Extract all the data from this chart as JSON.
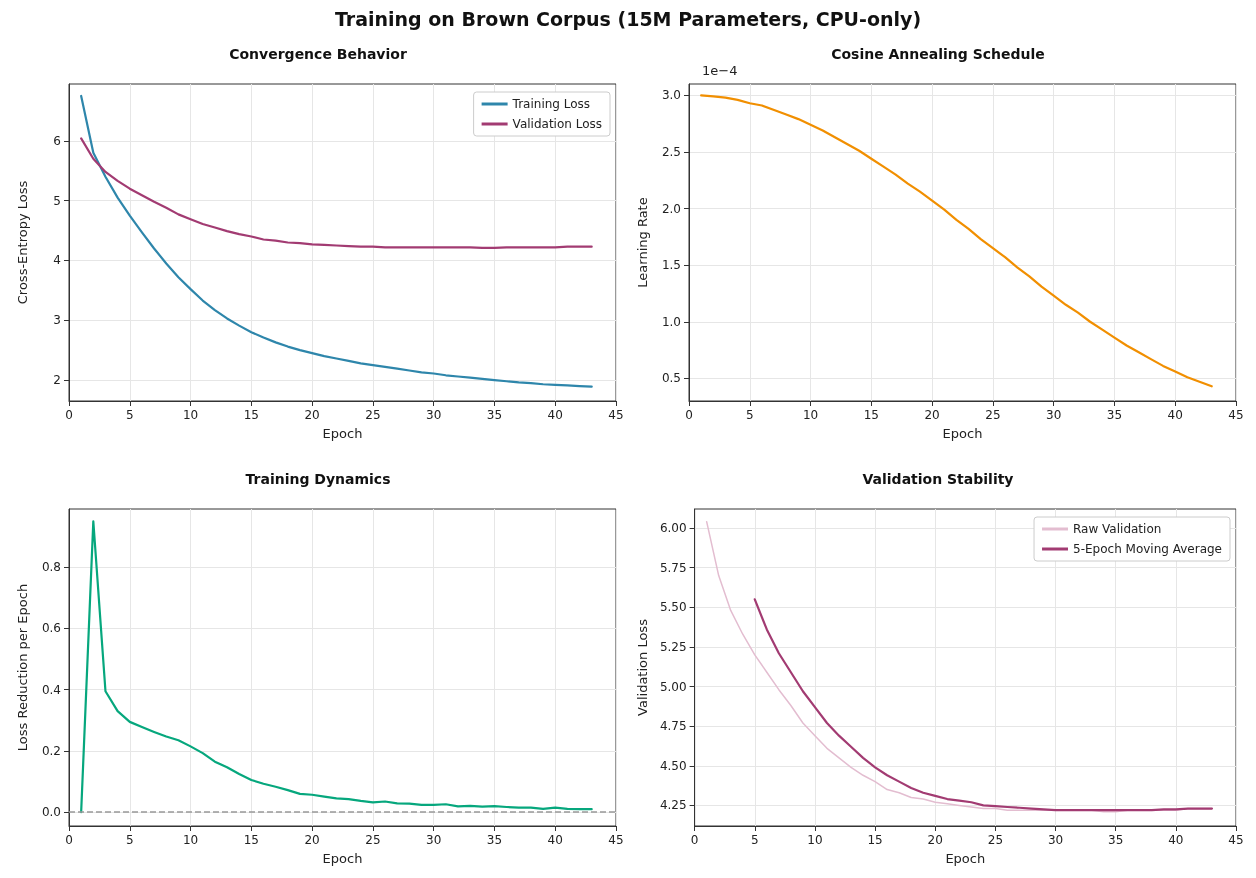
{
  "chart_data": [
    {
      "type": "line",
      "title": "Convergence Behavior",
      "annotations": [
        "Training on Brown Corpus (15M Parameters, CPU-only)"
      ],
      "xlabel": "Epoch",
      "ylabel": "Cross-Entropy Loss",
      "x": [
        1,
        2,
        3,
        4,
        5,
        6,
        7,
        8,
        9,
        10,
        11,
        12,
        13,
        14,
        15,
        16,
        17,
        18,
        19,
        20,
        21,
        22,
        23,
        24,
        25,
        26,
        27,
        28,
        29,
        30,
        31,
        32,
        33,
        34,
        35,
        36,
        37,
        38,
        39,
        40,
        41,
        42,
        43
      ],
      "xlim": [
        0,
        45
      ],
      "xticks": [
        0,
        5,
        10,
        15,
        20,
        25,
        30,
        35,
        40,
        45
      ],
      "ylim": [
        1.65,
        6.95
      ],
      "yticks": [
        2,
        3,
        4,
        5,
        6
      ],
      "grid": true,
      "legend": "top right",
      "marker": "none",
      "line_style": "solid",
      "series": [
        {
          "name": "Training Loss",
          "color": "#2e86ab",
          "values": [
            6.75,
            5.8,
            5.4,
            5.05,
            4.75,
            4.47,
            4.2,
            3.95,
            3.72,
            3.52,
            3.33,
            3.17,
            3.03,
            2.91,
            2.8,
            2.71,
            2.63,
            2.56,
            2.5,
            2.45,
            2.4,
            2.36,
            2.32,
            2.28,
            2.25,
            2.22,
            2.19,
            2.16,
            2.13,
            2.11,
            2.08,
            2.06,
            2.04,
            2.02,
            2.0,
            1.98,
            1.96,
            1.95,
            1.93,
            1.92,
            1.91,
            1.9,
            1.89
          ]
        },
        {
          "name": "Validation Loss",
          "color": "#a23b72",
          "values": [
            6.04,
            5.7,
            5.48,
            5.33,
            5.2,
            5.09,
            4.98,
            4.88,
            4.77,
            4.69,
            4.61,
            4.55,
            4.49,
            4.44,
            4.4,
            4.35,
            4.33,
            4.3,
            4.29,
            4.27,
            4.26,
            4.25,
            4.24,
            4.23,
            4.23,
            4.22,
            4.22,
            4.22,
            4.22,
            4.22,
            4.22,
            4.22,
            4.22,
            4.21,
            4.21,
            4.22,
            4.22,
            4.22,
            4.22,
            4.22,
            4.23,
            4.23,
            4.23
          ]
        }
      ]
    },
    {
      "type": "line",
      "title": "Cosine Annealing Schedule",
      "xlabel": "Epoch",
      "ylabel": "Learning Rate",
      "annotations": [
        "1e−4"
      ],
      "x": [
        1,
        2,
        3,
        4,
        5,
        6,
        7,
        8,
        9,
        10,
        11,
        12,
        13,
        14,
        15,
        16,
        17,
        18,
        19,
        20,
        21,
        22,
        23,
        24,
        25,
        26,
        27,
        28,
        29,
        30,
        31,
        32,
        33,
        34,
        35,
        36,
        37,
        38,
        39,
        40,
        41,
        42,
        43
      ],
      "xlim": [
        0,
        45
      ],
      "xticks": [
        0,
        5,
        10,
        15,
        20,
        25,
        30,
        35,
        40,
        45
      ],
      "ylim": [
        0.3,
        3.1
      ],
      "yticks": [
        {
          "value": 0.5,
          "label": "0.5"
        },
        {
          "value": 1.0,
          "label": "1.0"
        },
        {
          "value": 1.5,
          "label": "1.5"
        },
        {
          "value": 2.0,
          "label": "2.0"
        },
        {
          "value": 2.5,
          "label": "2.5"
        },
        {
          "value": 3.0,
          "label": "3.0"
        }
      ],
      "grid": true,
      "marker": "none",
      "line_style": "solid",
      "series": [
        {
          "color": "#f18f01",
          "values": [
            3.0,
            2.99,
            2.98,
            2.96,
            2.93,
            2.91,
            2.87,
            2.83,
            2.79,
            2.74,
            2.69,
            2.63,
            2.57,
            2.51,
            2.44,
            2.37,
            2.3,
            2.22,
            2.15,
            2.07,
            1.99,
            1.9,
            1.82,
            1.73,
            1.65,
            1.57,
            1.48,
            1.4,
            1.31,
            1.23,
            1.15,
            1.08,
            1.0,
            0.93,
            0.86,
            0.79,
            0.73,
            0.67,
            0.61,
            0.56,
            0.51,
            0.47,
            0.43
          ]
        }
      ]
    },
    {
      "type": "line",
      "title": "Training Dynamics",
      "xlabel": "Epoch",
      "ylabel": "Loss Reduction per Epoch",
      "x": [
        1,
        2,
        3,
        4,
        5,
        6,
        7,
        8,
        9,
        10,
        11,
        12,
        13,
        14,
        15,
        16,
        17,
        18,
        19,
        20,
        21,
        22,
        23,
        24,
        25,
        26,
        27,
        28,
        29,
        30,
        31,
        32,
        33,
        34,
        35,
        36,
        37,
        38,
        39,
        40,
        41,
        42,
        43
      ],
      "xlim": [
        0,
        45
      ],
      "xticks": [
        0,
        5,
        10,
        15,
        20,
        25,
        30,
        35,
        40,
        45
      ],
      "ylim": [
        -0.045,
        0.99
      ],
      "yticks": [
        {
          "value": 0,
          "label": "0.0"
        },
        {
          "value": 0.2,
          "label": "0.2"
        },
        {
          "value": 0.4,
          "label": "0.4"
        },
        {
          "value": 0.6,
          "label": "0.6"
        },
        {
          "value": 0.8,
          "label": "0.8"
        }
      ],
      "grid": true,
      "marker": "none",
      "line_style": "solid",
      "ref_lines": [
        {
          "axis": "y",
          "value": 0,
          "color": "#999999",
          "line_style": "dashed"
        }
      ],
      "series": [
        {
          "color": "#06a77d",
          "values": [
            0,
            0.95,
            0.395,
            0.33,
            0.295,
            0.278,
            0.262,
            0.247,
            0.235,
            0.215,
            0.193,
            0.165,
            0.147,
            0.125,
            0.105,
            0.093,
            0.083,
            0.072,
            0.06,
            0.057,
            0.051,
            0.045,
            0.043,
            0.037,
            0.032,
            0.035,
            0.029,
            0.028,
            0.024,
            0.024,
            0.026,
            0.019,
            0.021,
            0.018,
            0.02,
            0.017,
            0.015,
            0.015,
            0.011,
            0.015,
            0.011,
            0.01,
            0.01
          ]
        }
      ]
    },
    {
      "type": "line",
      "title": "Validation Stability",
      "xlabel": "Epoch",
      "ylabel": "Validation Loss",
      "xlim": [
        0,
        45
      ],
      "xticks": [
        0,
        5,
        10,
        15,
        20,
        25,
        30,
        35,
        40,
        45
      ],
      "ylim": [
        4.12,
        6.12
      ],
      "yticks": [
        {
          "value": 4.25,
          "label": "4.25"
        },
        {
          "value": 4.5,
          "label": "4.50"
        },
        {
          "value": 4.75,
          "label": "4.75"
        },
        {
          "value": 5,
          "label": "5.00"
        },
        {
          "value": 5.25,
          "label": "5.25"
        },
        {
          "value": 5.5,
          "label": "5.50"
        },
        {
          "value": 5.75,
          "label": "5.75"
        },
        {
          "value": 6,
          "label": "6.00"
        }
      ],
      "grid": true,
      "legend": "top right",
      "marker": "none",
      "line_style": "solid",
      "series": [
        {
          "name": "Raw Validation",
          "color": "#e3bdd0",
          "x": [
            1,
            2,
            3,
            4,
            5,
            6,
            7,
            8,
            9,
            10,
            11,
            12,
            13,
            14,
            15,
            16,
            17,
            18,
            19,
            20,
            21,
            22,
            23,
            24,
            25,
            26,
            27,
            28,
            29,
            30,
            31,
            32,
            33,
            34,
            35,
            36,
            37,
            38,
            39,
            40,
            41,
            42,
            43
          ],
          "values": [
            6.04,
            5.7,
            5.48,
            5.33,
            5.2,
            5.09,
            4.98,
            4.88,
            4.77,
            4.69,
            4.61,
            4.55,
            4.49,
            4.44,
            4.4,
            4.35,
            4.33,
            4.3,
            4.29,
            4.27,
            4.26,
            4.25,
            4.24,
            4.23,
            4.23,
            4.22,
            4.22,
            4.22,
            4.22,
            4.22,
            4.22,
            4.22,
            4.22,
            4.21,
            4.21,
            4.22,
            4.22,
            4.22,
            4.22,
            4.22,
            4.23,
            4.23,
            4.23
          ]
        },
        {
          "name": "5-Epoch Moving Average",
          "color": "#a23b72",
          "x": [
            5,
            6,
            7,
            8,
            9,
            10,
            11,
            12,
            13,
            14,
            15,
            16,
            17,
            18,
            19,
            20,
            21,
            22,
            23,
            24,
            25,
            26,
            27,
            28,
            29,
            30,
            31,
            32,
            33,
            34,
            35,
            36,
            37,
            38,
            39,
            40,
            41,
            42,
            43
          ],
          "values": [
            5.55,
            5.36,
            5.21,
            5.09,
            4.97,
            4.87,
            4.77,
            4.69,
            4.62,
            4.55,
            4.49,
            4.44,
            4.4,
            4.36,
            4.33,
            4.31,
            4.29,
            4.28,
            4.27,
            4.25,
            4.245,
            4.24,
            4.235,
            4.23,
            4.225,
            4.22,
            4.22,
            4.22,
            4.22,
            4.22,
            4.22,
            4.22,
            4.22,
            4.22,
            4.225,
            4.225,
            4.23,
            4.23,
            4.23
          ]
        }
      ]
    }
  ]
}
